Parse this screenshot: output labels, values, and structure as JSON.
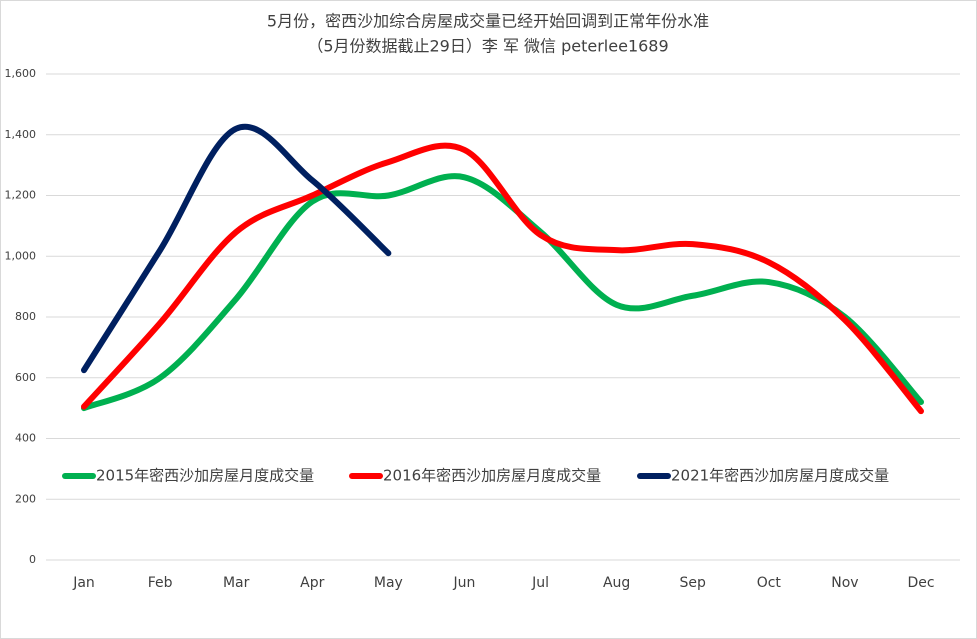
{
  "chart_data": {
    "type": "line",
    "title": "5月份，密西沙加综合房屋成交量已经开始回调到正常年份水准",
    "subtitle": "（5月份数据截止29日）李 军 微信 peterlee1689",
    "categories": [
      "Jan",
      "Feb",
      "Mar",
      "Apr",
      "May",
      "Jun",
      "Jul",
      "Aug",
      "Sep",
      "Oct",
      "Nov",
      "Dec"
    ],
    "series": [
      {
        "name": "2015年密西沙加房屋月度成交量",
        "color": "#00b050",
        "values": [
          500,
          600,
          860,
          1180,
          1200,
          1260,
          1080,
          840,
          870,
          915,
          800,
          520
        ]
      },
      {
        "name": "2016年密西沙加房屋月度成交量",
        "color": "#ff0000",
        "values": [
          505,
          780,
          1080,
          1200,
          1310,
          1350,
          1070,
          1020,
          1040,
          980,
          790,
          490
        ]
      },
      {
        "name": "2021年密西沙加房屋月度成交量",
        "color": "#002060",
        "values": [
          625,
          1020,
          1420,
          1250,
          1010,
          null,
          null,
          null,
          null,
          null,
          null,
          null
        ]
      }
    ],
    "ylim": [
      0,
      1600
    ],
    "yticks": [
      0,
      200,
      400,
      600,
      800,
      {
        "value": 1000,
        "label": "1,000"
      },
      {
        "value": 1200,
        "label": "1,200"
      },
      {
        "value": 1400,
        "label": "1,400"
      },
      {
        "value": 1600,
        "label": "1,600"
      }
    ],
    "grid": true,
    "smooth": true
  }
}
